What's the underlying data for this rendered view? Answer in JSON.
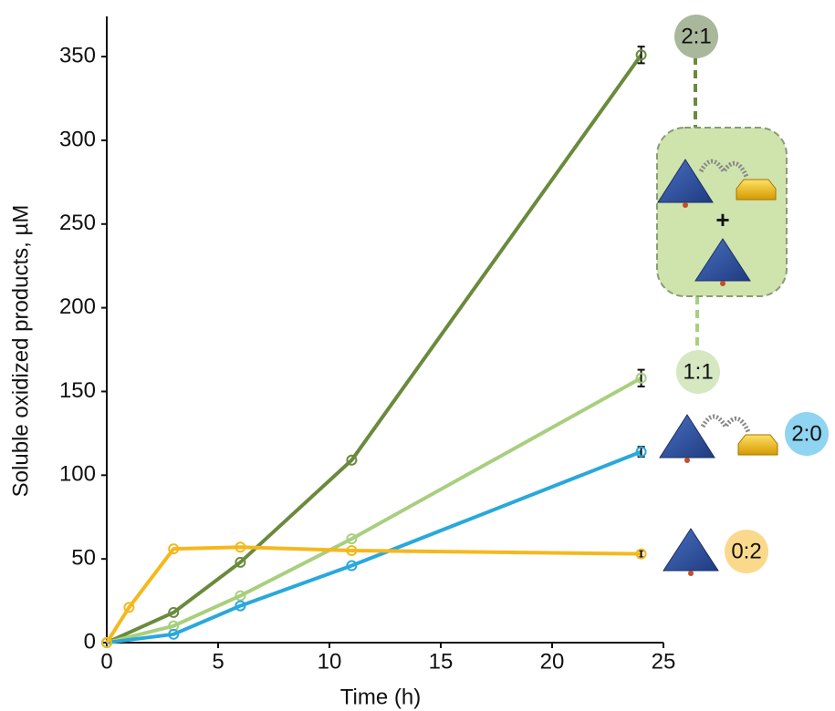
{
  "chart_data": {
    "type": "line",
    "x_label": "Time (h)",
    "y_label": "Soluble oxidized products, µM",
    "xlim": [
      0,
      25
    ],
    "xticks": [
      0,
      5,
      10,
      15,
      20,
      25
    ],
    "ylim": [
      0,
      374
    ],
    "yticks": [
      0,
      50,
      100,
      150,
      200,
      250,
      300,
      350
    ],
    "series": [
      {
        "name": "2:1",
        "color": "#6a8a3c",
        "label_color": "#a9b89a",
        "x": [
          0,
          3,
          6,
          11,
          24
        ],
        "values": [
          0,
          18,
          48,
          109,
          351
        ],
        "errors": [
          null,
          null,
          null,
          null,
          5
        ]
      },
      {
        "name": "1:1",
        "color": "#a8cf7e",
        "label_color": "#d6e8c2",
        "x": [
          0,
          3,
          6,
          11,
          24
        ],
        "values": [
          0,
          10,
          28,
          62,
          158
        ],
        "errors": [
          null,
          null,
          null,
          null,
          5
        ]
      },
      {
        "name": "2:0",
        "color": "#29a8dc",
        "label_color": "#8fd4f0",
        "x": [
          0,
          3,
          6,
          11,
          24
        ],
        "values": [
          0,
          5,
          22,
          46,
          114
        ],
        "errors": [
          null,
          null,
          null,
          null,
          3
        ]
      },
      {
        "name": "0:2",
        "color": "#f5b81c",
        "label_color": "#fbd98c",
        "x": [
          0,
          1,
          3,
          6,
          11,
          24
        ],
        "values": [
          0,
          21,
          56,
          57,
          55,
          53
        ],
        "errors": [
          null,
          null,
          null,
          null,
          null,
          2
        ]
      }
    ]
  }
}
